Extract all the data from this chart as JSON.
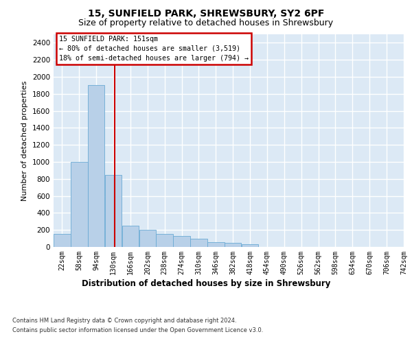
{
  "title_line1": "15, SUNFIELD PARK, SHREWSBURY, SY2 6PF",
  "title_line2": "Size of property relative to detached houses in Shrewsbury",
  "xlabel": "Distribution of detached houses by size in Shrewsbury",
  "ylabel": "Number of detached properties",
  "footer_line1": "Contains HM Land Registry data © Crown copyright and database right 2024.",
  "footer_line2": "Contains public sector information licensed under the Open Government Licence v3.0.",
  "bin_labels": [
    "22sqm",
    "58sqm",
    "94sqm",
    "130sqm",
    "166sqm",
    "202sqm",
    "238sqm",
    "274sqm",
    "310sqm",
    "346sqm",
    "382sqm",
    "418sqm",
    "454sqm",
    "490sqm",
    "526sqm",
    "562sqm",
    "598sqm",
    "634sqm",
    "670sqm",
    "706sqm",
    "742sqm"
  ],
  "bin_edges": [
    22,
    58,
    94,
    130,
    166,
    202,
    238,
    274,
    310,
    346,
    382,
    418,
    454,
    490,
    526,
    562,
    598,
    634,
    670,
    706,
    742
  ],
  "bar_heights": [
    150,
    1000,
    1900,
    850,
    250,
    200,
    150,
    130,
    100,
    60,
    50,
    30,
    0,
    0,
    0,
    0,
    0,
    0,
    0,
    0
  ],
  "bar_color": "#b8d0e8",
  "bar_edge_color": "#6aaad4",
  "property_size": 151,
  "annotation_line1": "15 SUNFIELD PARK: 151sqm",
  "annotation_line2": "← 80% of detached houses are smaller (3,519)",
  "annotation_line3": "18% of semi-detached houses are larger (794) →",
  "vline_color": "#cc0000",
  "ylim": [
    0,
    2500
  ],
  "yticks": [
    0,
    200,
    400,
    600,
    800,
    1000,
    1200,
    1400,
    1600,
    1800,
    2000,
    2200,
    2400
  ],
  "plot_bg_color": "#dce9f5",
  "grid_color": "#ffffff",
  "fig_bg_color": "#ffffff",
  "annotation_box_color": "#ffffff",
  "annotation_box_edge": "#cc0000",
  "title1_fontsize": 10,
  "title2_fontsize": 9
}
